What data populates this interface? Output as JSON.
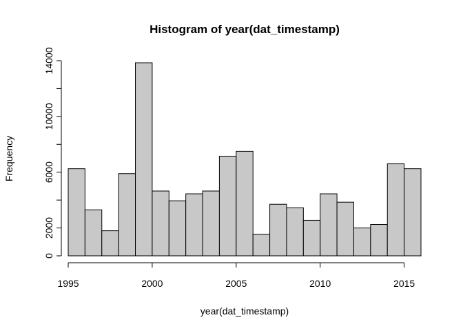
{
  "chart_data": {
    "type": "bar",
    "title": "Histogram of year(dat_timestamp)",
    "xlabel": "year(dat_timestamp)",
    "ylabel": "Frequency",
    "bin_starts": [
      1995,
      1996,
      1997,
      1998,
      1999,
      2000,
      2001,
      2002,
      2003,
      2004,
      2005,
      2006,
      2007,
      2008,
      2009,
      2010,
      2011,
      2012,
      2013,
      2014,
      2015
    ],
    "bin_width": 1,
    "values": [
      6250,
      3300,
      1800,
      5900,
      13850,
      4650,
      3950,
      4450,
      4650,
      7150,
      7500,
      1550,
      3700,
      3450,
      2550,
      4450,
      3850,
      2000,
      2250,
      6600,
      6250
    ],
    "xlim": [
      1995,
      2016
    ],
    "ylim": [
      0,
      14000
    ],
    "x_ticks": [
      1995,
      2000,
      2005,
      2010,
      2015
    ],
    "y_ticks": [
      0,
      2000,
      4000,
      6000,
      8000,
      10000,
      12000,
      14000
    ],
    "y_tick_labels": [
      "0",
      "2000",
      "",
      "6000",
      "",
      "10000",
      "",
      "14000"
    ],
    "bar_color": "#c8c8c8",
    "bar_stroke": "#000000",
    "grid": false
  }
}
